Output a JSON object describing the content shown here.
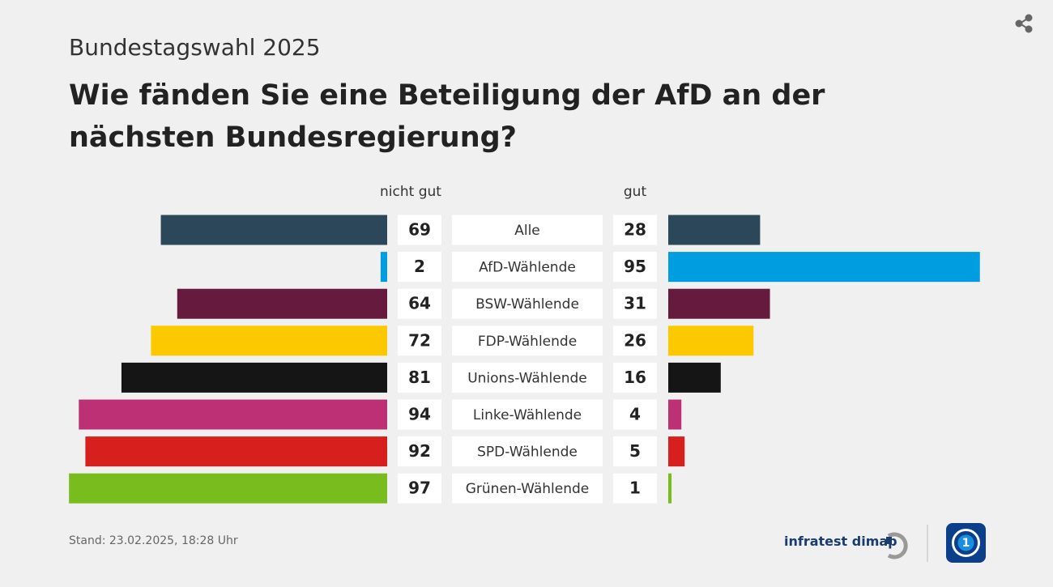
{
  "chart_data": {
    "type": "butterfly-bar",
    "subtitle": "Bundestagswahl 2025",
    "title": "Wie fänden Sie eine Beteiligung der AfD an der nächsten Bundesregierung?",
    "categories": [
      "Alle",
      "AfD-Wählende",
      "BSW-Wählende",
      "FDP-Wählende",
      "Unions-Wählende",
      "Linke-Wählende",
      "SPD-Wählende",
      "Grünen-Wählende"
    ],
    "colors": [
      "#2c4759",
      "#009ee0",
      "#661a3e",
      "#fcc900",
      "#151515",
      "#be3075",
      "#d71f1d",
      "#78bc1e"
    ],
    "series": [
      {
        "name": "nicht gut",
        "values": [
          69,
          2,
          64,
          72,
          81,
          94,
          92,
          97
        ]
      },
      {
        "name": "gut",
        "values": [
          28,
          95,
          31,
          26,
          16,
          4,
          5,
          1
        ]
      }
    ]
  },
  "footer": {
    "stand": "Stand:  23.02.2025, 18:28 Uhr",
    "brand": "infratest dimap"
  }
}
